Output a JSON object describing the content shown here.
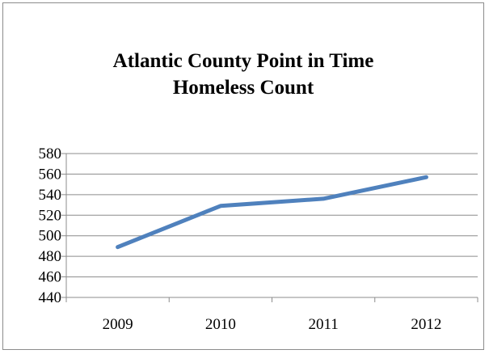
{
  "chart_data": {
    "type": "line",
    "title_lines": [
      "Atlantic County Point in Time",
      "Homeless Count"
    ],
    "categories": [
      "2009",
      "2010",
      "2011",
      "2012"
    ],
    "series": [
      {
        "values": [
          489,
          529,
          536,
          557
        ],
        "color": "#4f81bd"
      }
    ],
    "ylim": [
      440,
      580
    ],
    "yticks": [
      440,
      460,
      480,
      500,
      520,
      540,
      560,
      580
    ],
    "grid": true,
    "legend": "none"
  }
}
